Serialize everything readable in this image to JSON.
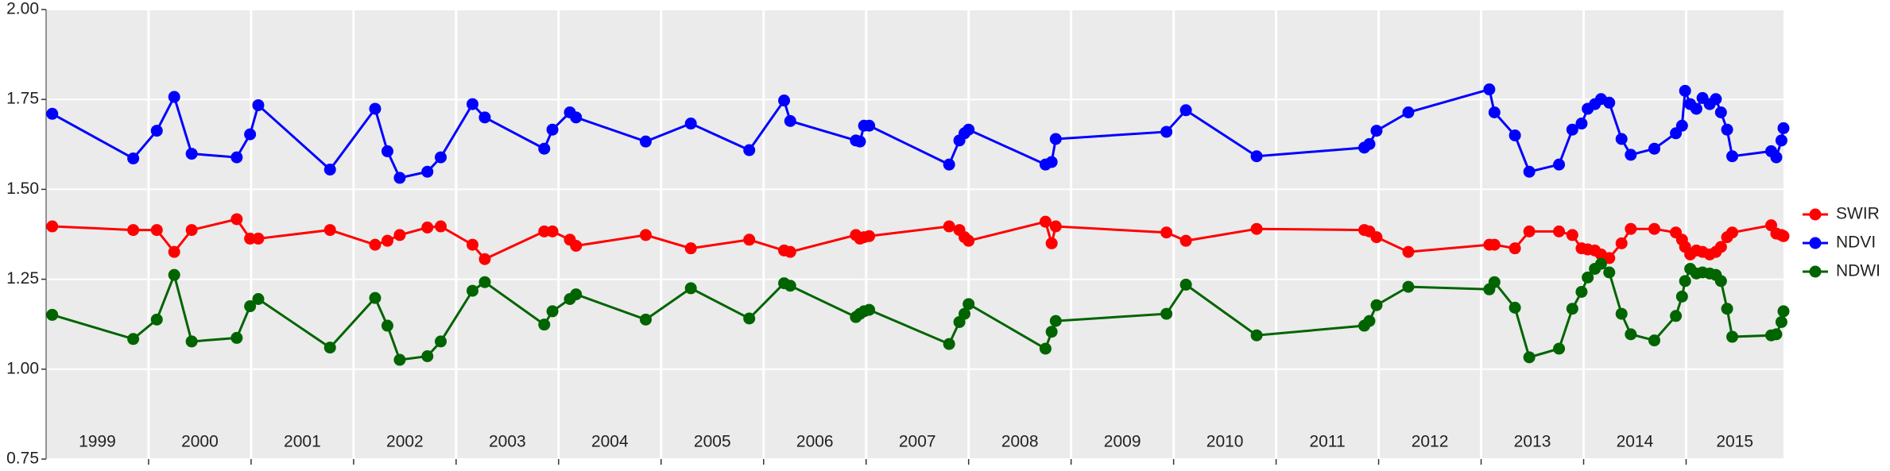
{
  "chart_data": {
    "type": "line",
    "markers": true,
    "grid": true,
    "legend": "right",
    "x": [
      1999.06,
      1999.85,
      2000.08,
      2000.25,
      2000.42,
      2000.86,
      2000.99,
      2001.07,
      2001.77,
      2002.21,
      2002.33,
      2002.45,
      2002.72,
      2002.85,
      2003.16,
      2003.28,
      2003.86,
      2003.94,
      2004.11,
      2004.17,
      2004.85,
      2005.29,
      2005.86,
      2006.2,
      2006.26,
      2006.9,
      2006.94,
      2006.98,
      2007.03,
      2007.81,
      2007.91,
      2007.96,
      2008.0,
      2008.75,
      2008.81,
      2008.85,
      2009.93,
      2010.12,
      2010.81,
      2011.86,
      2011.91,
      2011.98,
      2012.29,
      2013.08,
      2013.13,
      2013.33,
      2013.47,
      2013.76,
      2013.89,
      2013.98,
      2014.04,
      2014.11,
      2014.17,
      2014.25,
      2014.37,
      2014.46,
      2014.69,
      2014.9,
      2014.96,
      2014.99,
      2015.04,
      2015.1,
      2015.16,
      2015.23,
      2015.29,
      2015.34,
      2015.4,
      2015.45,
      2015.83,
      2015.88,
      2015.93,
      2015.95
    ],
    "xlim": [
      1999.0,
      2015.95
    ],
    "xticks": [
      {
        "value": 1999,
        "label": "1999"
      },
      {
        "value": 2000,
        "label": "2000"
      },
      {
        "value": 2001,
        "label": "2001"
      },
      {
        "value": 2002,
        "label": "2002"
      },
      {
        "value": 2003,
        "label": "2003"
      },
      {
        "value": 2004,
        "label": "2004"
      },
      {
        "value": 2005,
        "label": "2005"
      },
      {
        "value": 2006,
        "label": "2006"
      },
      {
        "value": 2007,
        "label": "2007"
      },
      {
        "value": 2008,
        "label": "2008"
      },
      {
        "value": 2009,
        "label": "2009"
      },
      {
        "value": 2010,
        "label": "2010"
      },
      {
        "value": 2011,
        "label": "2011"
      },
      {
        "value": 2012,
        "label": "2012"
      },
      {
        "value": 2013,
        "label": "2013"
      },
      {
        "value": 2014,
        "label": "2014"
      },
      {
        "value": 2015,
        "label": "2015"
      }
    ],
    "ylim": [
      0.75,
      2.0
    ],
    "yticks": [
      {
        "value": 0.75,
        "label": "0.75"
      },
      {
        "value": 1.0,
        "label": "1.00"
      },
      {
        "value": 1.25,
        "label": "1.25"
      },
      {
        "value": 1.5,
        "label": "1.50"
      },
      {
        "value": 1.75,
        "label": "1.75"
      },
      {
        "value": 2.0,
        "label": "2.00"
      }
    ],
    "series": [
      {
        "name": "SWIR",
        "color": "#ff0000",
        "values": [
          1.397,
          1.387,
          1.387,
          1.326,
          1.387,
          1.417,
          1.363,
          1.363,
          1.387,
          1.346,
          1.357,
          1.373,
          1.394,
          1.397,
          1.346,
          1.306,
          1.383,
          1.383,
          1.36,
          1.343,
          1.373,
          1.336,
          1.36,
          1.33,
          1.326,
          1.373,
          1.363,
          1.367,
          1.37,
          1.397,
          1.387,
          1.367,
          1.357,
          1.41,
          1.35,
          1.397,
          1.38,
          1.357,
          1.39,
          1.387,
          1.383,
          1.367,
          1.326,
          1.346,
          1.346,
          1.336,
          1.383,
          1.383,
          1.373,
          1.336,
          1.333,
          1.33,
          1.319,
          1.309,
          1.35,
          1.39,
          1.39,
          1.38,
          1.36,
          1.34,
          1.319,
          1.33,
          1.326,
          1.319,
          1.326,
          1.34,
          1.367,
          1.38,
          1.4,
          1.377,
          1.373,
          1.37
        ]
      },
      {
        "name": "NDVI",
        "color": "#0000ff",
        "values": [
          1.71,
          1.586,
          1.663,
          1.757,
          1.599,
          1.589,
          1.653,
          1.734,
          1.555,
          1.724,
          1.606,
          1.532,
          1.549,
          1.589,
          1.737,
          1.7,
          1.613,
          1.666,
          1.714,
          1.7,
          1.633,
          1.683,
          1.609,
          1.747,
          1.69,
          1.636,
          1.633,
          1.677,
          1.677,
          1.569,
          1.636,
          1.656,
          1.666,
          1.569,
          1.576,
          1.64,
          1.66,
          1.72,
          1.592,
          1.616,
          1.626,
          1.663,
          1.714,
          1.778,
          1.714,
          1.65,
          1.549,
          1.569,
          1.666,
          1.683,
          1.724,
          1.737,
          1.751,
          1.741,
          1.64,
          1.596,
          1.613,
          1.656,
          1.677,
          1.774,
          1.737,
          1.724,
          1.754,
          1.737,
          1.751,
          1.714,
          1.666,
          1.592,
          1.606,
          1.589,
          1.636,
          1.67
        ]
      },
      {
        "name": "NDWI",
        "color": "#006400",
        "values": [
          1.151,
          1.084,
          1.138,
          1.262,
          1.077,
          1.087,
          1.175,
          1.195,
          1.06,
          1.198,
          1.121,
          1.026,
          1.036,
          1.077,
          1.218,
          1.242,
          1.124,
          1.161,
          1.195,
          1.208,
          1.138,
          1.225,
          1.141,
          1.239,
          1.232,
          1.145,
          1.154,
          1.161,
          1.165,
          1.07,
          1.131,
          1.154,
          1.181,
          1.057,
          1.104,
          1.134,
          1.154,
          1.235,
          1.094,
          1.121,
          1.134,
          1.178,
          1.229,
          1.222,
          1.242,
          1.171,
          1.033,
          1.057,
          1.168,
          1.215,
          1.255,
          1.279,
          1.293,
          1.269,
          1.154,
          1.097,
          1.08,
          1.148,
          1.202,
          1.245,
          1.279,
          1.266,
          1.269,
          1.266,
          1.262,
          1.245,
          1.168,
          1.09,
          1.094,
          1.097,
          1.131,
          1.161
        ]
      }
    ]
  }
}
